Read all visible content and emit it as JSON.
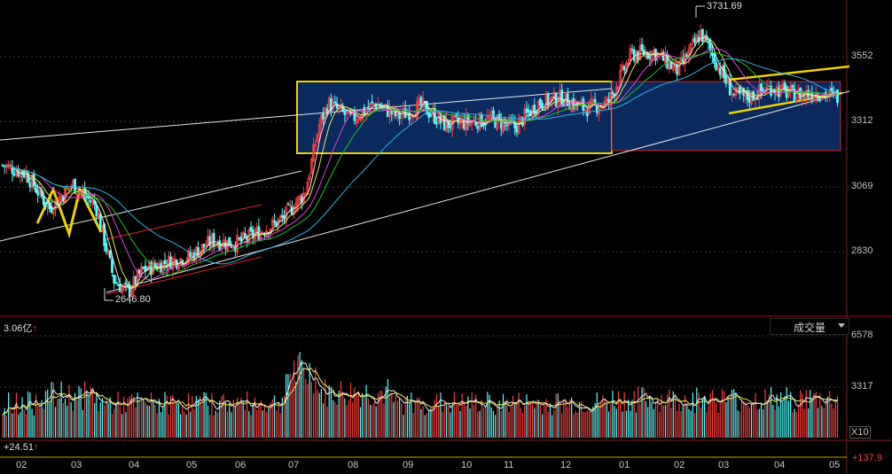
{
  "panel": {
    "volume_label": "成交量",
    "volume_header": "3.06亿",
    "indicator_header": "+24.51",
    "indicator_right": "+137.9",
    "x10_label": "X10",
    "up_arrow": "up-arrow-icon",
    "dropdown_icon": "chevron-down-icon"
  },
  "chart_data": [
    {
      "type": "candlestick",
      "title": "",
      "annotations": [
        {
          "text": "3731.69",
          "label": "high"
        },
        {
          "text": "2646.80",
          "label": "low"
        }
      ],
      "y_ticks": [
        3552,
        3312,
        3069,
        2830
      ],
      "ylim": [
        2600,
        3800
      ],
      "x_ticks": [
        "02",
        "03",
        "04",
        "05",
        "06",
        "07",
        "08",
        "09",
        "10",
        "11",
        "12",
        "01",
        "02",
        "03",
        "04",
        "05"
      ],
      "close_series": [
        {
          "x": 0,
          "y": 3150
        },
        {
          "x": 0.5,
          "y": 3120
        },
        {
          "x": 1,
          "y": 2990
        },
        {
          "x": 1.5,
          "y": 3080
        },
        {
          "x": 2,
          "y": 3000
        },
        {
          "x": 2.4,
          "y": 2720
        },
        {
          "x": 2.7,
          "y": 2680
        },
        {
          "x": 3,
          "y": 2760
        },
        {
          "x": 3.5,
          "y": 2790
        },
        {
          "x": 4,
          "y": 2810
        },
        {
          "x": 4.5,
          "y": 2870
        },
        {
          "x": 5,
          "y": 2860
        },
        {
          "x": 5.5,
          "y": 2900
        },
        {
          "x": 6,
          "y": 2950
        },
        {
          "x": 6.5,
          "y": 3050
        },
        {
          "x": 6.8,
          "y": 3300
        },
        {
          "x": 7,
          "y": 3380
        },
        {
          "x": 7.5,
          "y": 3320
        },
        {
          "x": 8,
          "y": 3380
        },
        {
          "x": 8.5,
          "y": 3330
        },
        {
          "x": 9,
          "y": 3370
        },
        {
          "x": 9.5,
          "y": 3300
        },
        {
          "x": 10,
          "y": 3310
        },
        {
          "x": 10.5,
          "y": 3320
        },
        {
          "x": 11,
          "y": 3290
        },
        {
          "x": 11.5,
          "y": 3380
        },
        {
          "x": 12,
          "y": 3400
        },
        {
          "x": 12.5,
          "y": 3360
        },
        {
          "x": 13,
          "y": 3380
        },
        {
          "x": 13.5,
          "y": 3560
        },
        {
          "x": 14,
          "y": 3570
        },
        {
          "x": 14.5,
          "y": 3500
        },
        {
          "x": 15,
          "y": 3640
        },
        {
          "x": 15.3,
          "y": 3540
        },
        {
          "x": 15.7,
          "y": 3410
        },
        {
          "x": 16,
          "y": 3400
        },
        {
          "x": 16.5,
          "y": 3440
        },
        {
          "x": 17,
          "y": 3410
        },
        {
          "x": 17.5,
          "y": 3420
        },
        {
          "x": 18,
          "y": 3400
        }
      ],
      "volume": {
        "y_ticks": [
          6578,
          3317
        ],
        "ylim": [
          0,
          7000
        ]
      }
    }
  ],
  "colors": {
    "up": "#ff3c3c",
    "down": "#54ffff",
    "box_fill": "#0a2a5e",
    "box_border": "#f0d000",
    "channel_red": "#e02020",
    "trend_white": "#e8e8e8",
    "ma_yellow": "#e8e860",
    "ma_green": "#20c020",
    "ma_magenta": "#e040e0",
    "ma_cyan": "#30b0e0"
  }
}
